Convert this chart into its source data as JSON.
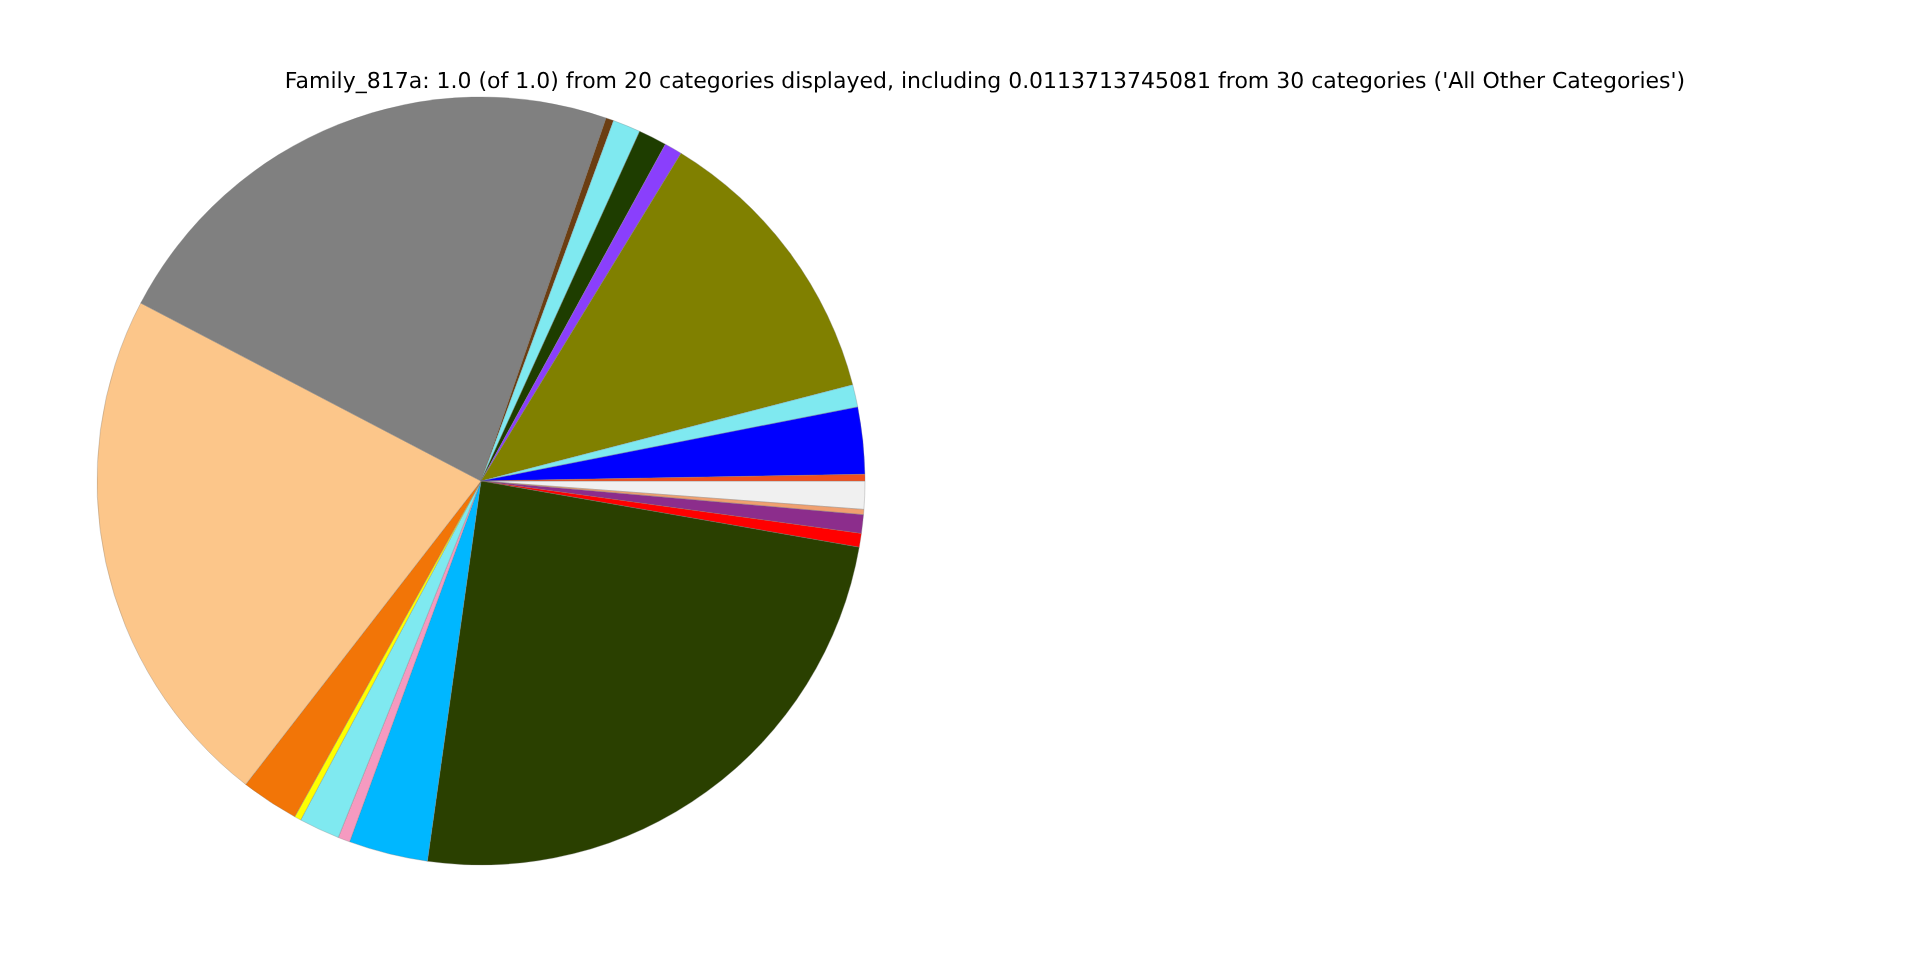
{
  "chart_data": {
    "type": "pie",
    "title": "Family_817a: 1.0 (of 1.0) from 20 categories displayed, including 0.0113713745081 from 30 categories ('All Other Categories')",
    "categories": [
      null,
      null,
      null,
      null,
      null,
      null,
      null,
      null,
      null,
      null,
      null,
      null,
      null,
      null,
      null,
      null,
      null,
      null,
      null,
      null
    ],
    "values": [
      0.28,
      2.81,
      0.94,
      12.25,
      0.75,
      1.19,
      1.17,
      0.33,
      22.61,
      22.17,
      2.44,
      0.28,
      1.72,
      0.5,
      3.33,
      24.47,
      0.58,
      0.78,
      0.22,
      1.18
    ],
    "colors": [
      "#f05020",
      "#0000ff",
      "#7fe9f0",
      "#808000",
      "#8a3ffc",
      "#1e3d00",
      "#7fe9f0",
      "#6b3e12",
      "#808080",
      "#fcc68a",
      "#f27507",
      "#ffff00",
      "#7fe9f0",
      "#f59ac0",
      "#00b7ff",
      "#2a4000",
      "#ff0000",
      "#8c2d8c",
      "#f0a070",
      "#f0f0f0"
    ]
  }
}
